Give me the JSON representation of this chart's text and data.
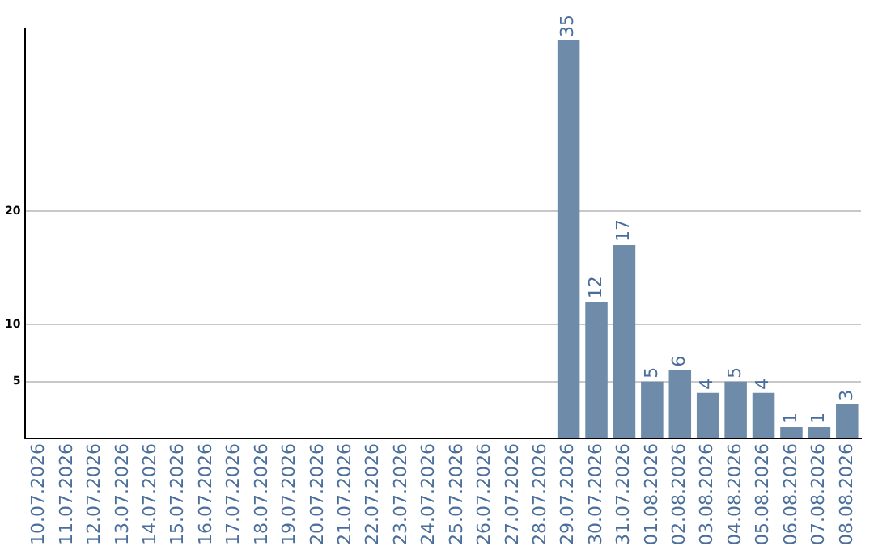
{
  "chart_data": {
    "type": "bar",
    "categories": [
      "10.07.2026",
      "11.07.2026",
      "12.07.2026",
      "13.07.2026",
      "14.07.2026",
      "15.07.2026",
      "16.07.2026",
      "17.07.2026",
      "18.07.2026",
      "19.07.2026",
      "20.07.2026",
      "21.07.2026",
      "22.07.2026",
      "23.07.2026",
      "24.07.2026",
      "25.07.2026",
      "26.07.2026",
      "27.07.2026",
      "28.07.2026",
      "29.07.2026",
      "30.07.2026",
      "31.07.2026",
      "01.08.2026",
      "02.08.2026",
      "03.08.2026",
      "04.08.2026",
      "05.08.2026",
      "06.08.2026",
      "07.08.2026",
      "08.08.2026"
    ],
    "values": [
      0,
      0,
      0,
      0,
      0,
      0,
      0,
      0,
      0,
      0,
      0,
      0,
      0,
      0,
      0,
      0,
      0,
      0,
      0,
      35,
      12,
      17,
      5,
      6,
      4,
      5,
      4,
      1,
      1,
      3
    ],
    "value_labels": [
      null,
      null,
      null,
      null,
      null,
      null,
      null,
      null,
      null,
      null,
      null,
      null,
      null,
      null,
      null,
      null,
      null,
      null,
      null,
      "35",
      "12",
      "17",
      "5",
      "6",
      "4",
      "5",
      "4",
      "1",
      "1",
      "3"
    ],
    "color": "#6e8caa",
    "ylim": [
      0,
      36
    ],
    "yticks": [
      5,
      10,
      20
    ],
    "grid": "y",
    "legend": false
  }
}
